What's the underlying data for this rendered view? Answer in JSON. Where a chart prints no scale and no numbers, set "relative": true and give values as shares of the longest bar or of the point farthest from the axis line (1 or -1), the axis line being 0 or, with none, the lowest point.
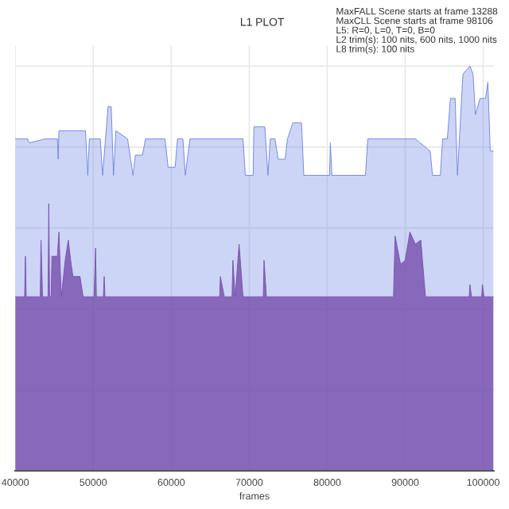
{
  "chart_data": {
    "type": "area",
    "title": "L1 PLOT",
    "xlabel": "frames",
    "relative": true,
    "grid": true,
    "tick_labels": "x",
    "xlim": [
      40000,
      101350
    ],
    "xticks": [
      40000,
      50000,
      60000,
      70000,
      80000,
      90000,
      100000
    ],
    "annotations": [
      "MaxFALL Scene starts at frame 13288",
      "MaxCLL Scene starts at frame 98106",
      "L5: R=0, L=0, T=0, B=0",
      "L2 trim(s): 100 nits, 600 nits, 1000 nits",
      "L8 trim(s): 100 nits"
    ],
    "series": [
      {
        "color": "#6f88e6",
        "x": [
          40000,
          41600,
          41800,
          43800,
          45400,
          45500,
          45600,
          49000,
          49300,
          49500,
          50900,
          51200,
          51900,
          52300,
          52600,
          52900,
          54400,
          55100,
          55400,
          56300,
          56700,
          59200,
          59600,
          60500,
          60800,
          61500,
          61800,
          62400,
          69200,
          69500,
          70500,
          70600,
          72000,
          72400,
          72700,
          73300,
          73700,
          74600,
          74900,
          75600,
          76700,
          77000,
          80300,
          80400,
          80600,
          84900,
          85200,
          91300,
          93200,
          93500,
          94500,
          94800,
          95400,
          95800,
          96400,
          96700,
          97400,
          98300,
          98700,
          99000,
          99600,
          100300,
          100600,
          100900,
          101300
        ],
        "values": [
          0.82,
          0.82,
          0.81,
          0.82,
          0.82,
          0.77,
          0.84,
          0.84,
          0.73,
          0.82,
          0.82,
          0.73,
          0.9,
          0.9,
          0.73,
          0.84,
          0.82,
          0.73,
          0.78,
          0.78,
          0.82,
          0.82,
          0.75,
          0.75,
          0.82,
          0.82,
          0.73,
          0.82,
          0.82,
          0.73,
          0.73,
          0.85,
          0.85,
          0.73,
          0.82,
          0.82,
          0.77,
          0.77,
          0.82,
          0.86,
          0.86,
          0.73,
          0.73,
          0.81,
          0.73,
          0.73,
          0.82,
          0.82,
          0.79,
          0.73,
          0.73,
          0.82,
          0.82,
          0.92,
          0.92,
          0.73,
          0.98,
          1.0,
          0.98,
          0.88,
          0.92,
          0.92,
          0.96,
          0.79,
          0.79
        ]
      },
      {
        "color": "#7a55b0",
        "x": [
          40000,
          41200,
          41300,
          41400,
          43200,
          43300,
          43500,
          44200,
          44300,
          44400,
          44600,
          44700,
          45400,
          45600,
          45900,
          46400,
          46800,
          47100,
          47400,
          48300,
          48700,
          50100,
          50300,
          50400,
          51300,
          51400,
          51500,
          66200,
          66300,
          66800,
          67800,
          67900,
          68200,
          68700,
          69200,
          71800,
          71900,
          72200,
          88500,
          88700,
          89400,
          90000,
          90600,
          91300,
          92000,
          92600,
          98200,
          98300,
          98500,
          99800,
          99900,
          100100,
          101300
        ],
        "values": [
          0.43,
          0.43,
          0.53,
          0.43,
          0.43,
          0.57,
          0.43,
          0.43,
          0.66,
          0.43,
          0.43,
          0.53,
          0.53,
          0.59,
          0.43,
          0.52,
          0.57,
          0.52,
          0.48,
          0.48,
          0.43,
          0.43,
          0.55,
          0.43,
          0.43,
          0.48,
          0.43,
          0.43,
          0.48,
          0.43,
          0.43,
          0.52,
          0.43,
          0.56,
          0.43,
          0.43,
          0.52,
          0.43,
          0.43,
          0.58,
          0.51,
          0.52,
          0.59,
          0.56,
          0.57,
          0.43,
          0.43,
          0.46,
          0.43,
          0.43,
          0.46,
          0.43,
          0.43
        ]
      }
    ]
  }
}
